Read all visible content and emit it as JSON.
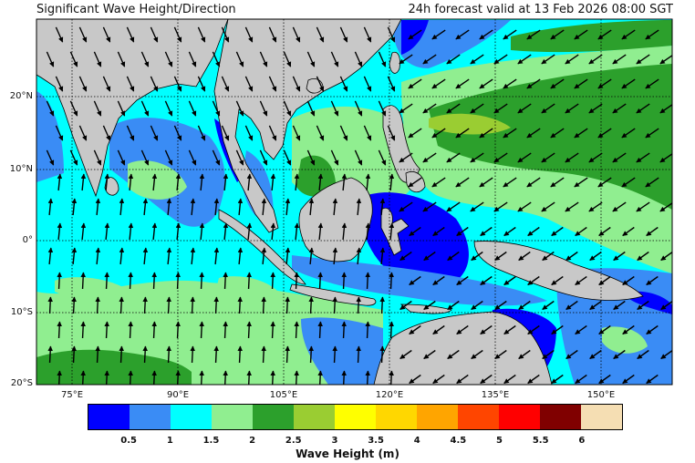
{
  "header": {
    "title": "Significant Wave Height/Direction",
    "forecast": "24h forecast valid at 13 Feb 2026 08:00 SGT"
  },
  "axes": {
    "lat_labels": [
      "20°N",
      "10°N",
      "0°",
      "10°S",
      "20°S"
    ],
    "lon_labels": [
      "75°E",
      "90°E",
      "105°E",
      "120°E",
      "135°E",
      "150°E"
    ]
  },
  "legend": {
    "title": "Wave Height (m)",
    "ticks": [
      "0.5",
      "1",
      "1.5",
      "2",
      "2.5",
      "3",
      "3.5",
      "4",
      "4.5",
      "5",
      "5.5",
      "6"
    ],
    "colors": [
      "#0000ff",
      "#3a8cf5",
      "#00ffff",
      "#90ee90",
      "#2ca02c",
      "#9acd32",
      "#ffff00",
      "#ffd700",
      "#ffa500",
      "#ff4500",
      "#ff0000",
      "#800000",
      "#f5deb3"
    ]
  },
  "colors": {
    "land": "#c8c8c8",
    "coast": "#000000",
    "grid": "#000000"
  }
}
